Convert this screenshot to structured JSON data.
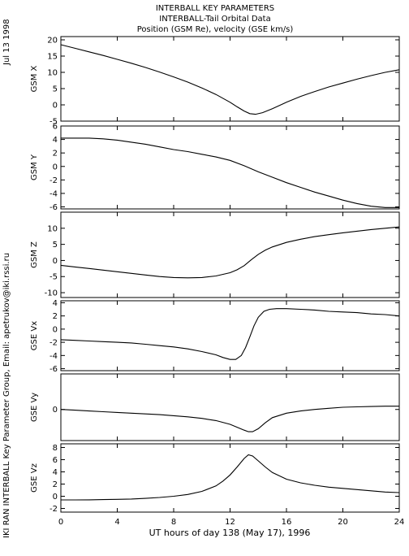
{
  "header": {
    "date_stamp": "Jul 13 1998",
    "title_lines": [
      "INTERBALL KEY PARAMETERS",
      "INTERBALL-Tail Orbital Data",
      "Position (GSM Re), velocity (GSE km/s)"
    ],
    "credit": "IKI RAN INTERBALL Key Parameter Group, Email: apetrukov@iki.rssi.ru"
  },
  "chart_data": {
    "type": "line",
    "xlabel": "UT hours of day 138 (May 17), 1996",
    "xlim": [
      0,
      24
    ],
    "xticks": [
      0,
      4,
      8,
      12,
      16,
      20,
      24
    ],
    "colors": {
      "line": "#000000",
      "axes": "#000000",
      "background": "#ffffff"
    },
    "panels": [
      {
        "ylabel": "GSM X",
        "ylim": [
          -5,
          21
        ],
        "yticks": [
          -5,
          0,
          5,
          10,
          15,
          20
        ],
        "x": [
          0,
          1,
          2,
          3,
          4,
          5,
          6,
          7,
          8,
          9,
          10,
          11,
          12,
          12.5,
          13,
          13.4,
          13.8,
          14.3,
          15,
          16,
          17,
          18,
          19,
          20,
          21,
          22,
          23,
          24
        ],
        "y": [
          18.5,
          17.4,
          16.3,
          15.2,
          14,
          12.8,
          11.5,
          10.1,
          8.6,
          7,
          5.2,
          3.2,
          0.8,
          -0.6,
          -1.9,
          -2.7,
          -2.9,
          -2.4,
          -1.2,
          0.8,
          2.6,
          4.1,
          5.5,
          6.7,
          7.9,
          9,
          10,
          10.8
        ]
      },
      {
        "ylabel": "GSM Y",
        "ylim": [
          -6.3,
          6
        ],
        "yticks": [
          -6,
          -4,
          -2,
          0,
          2,
          4,
          6
        ],
        "x": [
          0,
          1,
          2,
          3,
          4,
          5,
          6,
          7,
          8,
          9,
          10,
          11,
          12,
          13,
          14,
          15,
          16,
          17,
          18,
          19,
          20,
          21,
          22,
          23,
          24
        ],
        "y": [
          4.2,
          4.2,
          4.2,
          4.1,
          3.9,
          3.6,
          3.3,
          2.9,
          2.5,
          2.2,
          1.8,
          1.4,
          0.9,
          0.1,
          -0.8,
          -1.6,
          -2.4,
          -3.1,
          -3.8,
          -4.4,
          -5,
          -5.5,
          -5.9,
          -6.1,
          -6.1
        ]
      },
      {
        "ylabel": "GSM Z",
        "ylim": [
          -11.5,
          15
        ],
        "yticks": [
          -10,
          -5,
          0,
          5,
          10
        ],
        "x": [
          0,
          1,
          2,
          3,
          4,
          5,
          6,
          7,
          8,
          9,
          10,
          11,
          12,
          12.5,
          13,
          13.5,
          14,
          14.5,
          15,
          16,
          17,
          18,
          19,
          20,
          21,
          22,
          23,
          24
        ],
        "y": [
          -1.5,
          -2,
          -2.5,
          -3,
          -3.5,
          -4,
          -4.5,
          -5,
          -5.3,
          -5.4,
          -5.3,
          -4.8,
          -3.8,
          -2.9,
          -1.6,
          0.2,
          1.9,
          3.2,
          4.2,
          5.6,
          6.6,
          7.4,
          8,
          8.6,
          9.1,
          9.6,
          10,
          10.4
        ]
      },
      {
        "ylabel": "GSE Vx",
        "ylim": [
          -6.3,
          4.3
        ],
        "yticks": [
          -6,
          -4,
          -2,
          0,
          2,
          4
        ],
        "x": [
          0,
          1,
          2,
          3,
          4,
          5,
          6,
          7,
          8,
          9,
          10,
          11,
          11.5,
          12,
          12.4,
          12.8,
          13.1,
          13.4,
          13.7,
          14,
          14.4,
          14.8,
          15.3,
          16,
          17,
          18,
          19,
          20,
          21,
          22,
          23,
          24
        ],
        "y": [
          -1.6,
          -1.7,
          -1.8,
          -1.9,
          -2,
          -2.1,
          -2.3,
          -2.5,
          -2.7,
          -3,
          -3.4,
          -3.9,
          -4.3,
          -4.6,
          -4.6,
          -4,
          -2.8,
          -1.2,
          0.5,
          1.8,
          2.7,
          3,
          3.1,
          3.1,
          3,
          2.9,
          2.7,
          2.6,
          2.5,
          2.3,
          2.2,
          2
        ]
      },
      {
        "ylabel": "GSE Vy",
        "ylim": [
          -2.1,
          2.4
        ],
        "yticks": [
          0
        ],
        "x": [
          0,
          1,
          2,
          3,
          4,
          5,
          6,
          7,
          8,
          9,
          10,
          11,
          12,
          12.5,
          13,
          13.3,
          13.6,
          14,
          14.5,
          15,
          16,
          17,
          18,
          19,
          20,
          21,
          22,
          23,
          24
        ],
        "y": [
          0,
          -0.05,
          -0.1,
          -0.15,
          -0.2,
          -0.25,
          -0.3,
          -0.35,
          -0.42,
          -0.5,
          -0.6,
          -0.75,
          -1,
          -1.2,
          -1.4,
          -1.5,
          -1.5,
          -1.3,
          -0.9,
          -0.55,
          -0.25,
          -0.1,
          0,
          0.08,
          0.15,
          0.18,
          0.2,
          0.22,
          0.22
        ]
      },
      {
        "ylabel": "GSE Vz",
        "ylim": [
          -2.6,
          8.6
        ],
        "yticks": [
          -2,
          0,
          2,
          4,
          6,
          8
        ],
        "x": [
          0,
          1,
          2,
          3,
          4,
          5,
          6,
          7,
          8,
          9,
          10,
          11,
          11.5,
          12,
          12.5,
          13,
          13.3,
          13.6,
          14,
          14.5,
          15,
          16,
          17,
          18,
          19,
          20,
          21,
          22,
          23,
          24
        ],
        "y": [
          -0.6,
          -0.6,
          -0.58,
          -0.55,
          -0.5,
          -0.45,
          -0.35,
          -0.2,
          0,
          0.3,
          0.8,
          1.7,
          2.5,
          3.5,
          4.8,
          6.2,
          6.8,
          6.6,
          5.8,
          4.8,
          3.9,
          2.8,
          2.2,
          1.8,
          1.5,
          1.3,
          1.1,
          0.9,
          0.7,
          0.6
        ]
      }
    ]
  }
}
